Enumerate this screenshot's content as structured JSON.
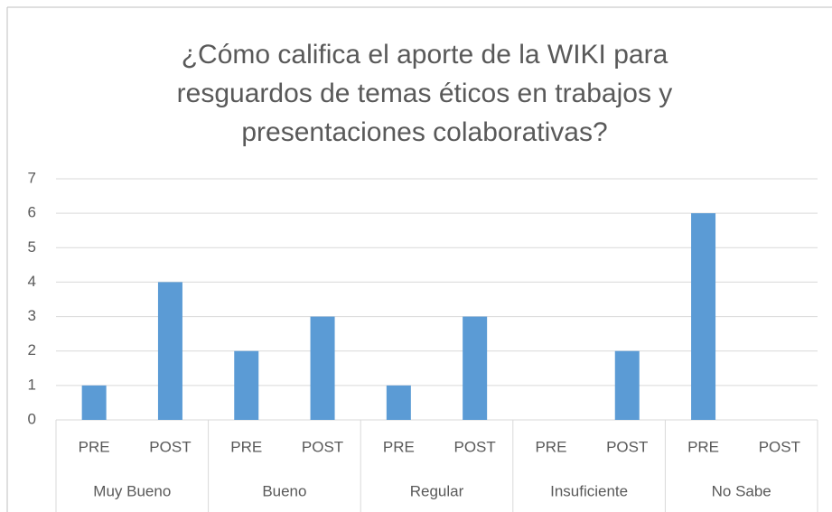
{
  "chart_data": {
    "type": "bar",
    "title": [
      "¿Cómo califica el aporte de la WIKI para",
      "resguardos de temas éticos en trabajos y",
      "presentaciones colaborativas?"
    ],
    "groups": [
      "Muy Bueno",
      "Bueno",
      "Regular",
      "Insuficiente",
      "No Sabe"
    ],
    "categories": [
      "PRE",
      "POST",
      "PRE",
      "POST",
      "PRE",
      "POST",
      "PRE",
      "POST",
      "PRE",
      "POST"
    ],
    "values": [
      1,
      4,
      2,
      3,
      1,
      3,
      0,
      2,
      6,
      0
    ],
    "color": "#5b9bd5",
    "ylim": [
      0,
      7
    ],
    "yticks": [
      0,
      1,
      2,
      3,
      4,
      5,
      6,
      7
    ],
    "grid": true
  }
}
